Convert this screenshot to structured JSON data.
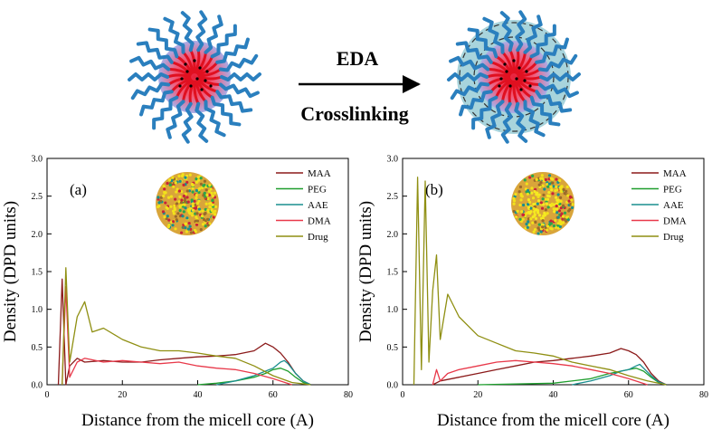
{
  "schematic": {
    "reaction_top": "EDA",
    "reaction_bottom": "Crosslinking"
  },
  "chart_data": [
    {
      "type": "line",
      "panel_label": "(a)",
      "xlabel": "Distance from the micell core (A)",
      "ylabel": "Density (DPD units)",
      "xlim": [
        0,
        80
      ],
      "ylim": [
        0,
        3.0
      ],
      "xticks": [
        "0",
        "20",
        "40",
        "60",
        "80"
      ],
      "yticks": [
        "0.0",
        "0.5",
        "1.0",
        "1.5",
        "2.0",
        "2.5",
        "3.0"
      ],
      "legend": [
        "MAA",
        "PEG",
        "AAE",
        "DMA",
        "Drug"
      ],
      "legend_position": "top-right",
      "series": [
        {
          "name": "MAA",
          "color": "#8b1a1a",
          "x": [
            3,
            4,
            5,
            6,
            8,
            10,
            15,
            20,
            25,
            30,
            35,
            40,
            45,
            50,
            55,
            58,
            60,
            62,
            64,
            66,
            68,
            70
          ],
          "y": [
            0,
            1.4,
            0.0,
            0.25,
            0.35,
            0.3,
            0.32,
            0.3,
            0.3,
            0.33,
            0.35,
            0.37,
            0.38,
            0.4,
            0.45,
            0.55,
            0.5,
            0.42,
            0.3,
            0.15,
            0.05,
            0
          ]
        },
        {
          "name": "PEG",
          "color": "#1f9e2e",
          "x": [
            40,
            45,
            50,
            55,
            58,
            60,
            62,
            64,
            66,
            68,
            70
          ],
          "y": [
            0,
            0.02,
            0.05,
            0.1,
            0.15,
            0.2,
            0.22,
            0.18,
            0.1,
            0.03,
            0
          ]
        },
        {
          "name": "AAE",
          "color": "#1a8f8f",
          "x": [
            45,
            50,
            55,
            58,
            60,
            62,
            63,
            64,
            66,
            68,
            70
          ],
          "y": [
            0,
            0.05,
            0.12,
            0.18,
            0.22,
            0.3,
            0.32,
            0.28,
            0.15,
            0.05,
            0
          ]
        },
        {
          "name": "DMA",
          "color": "#e8394a",
          "x": [
            4,
            5,
            6,
            8,
            10,
            15,
            20,
            25,
            30,
            35,
            40,
            45,
            50,
            55,
            60,
            65
          ],
          "y": [
            0,
            1.3,
            0.1,
            0.3,
            0.35,
            0.3,
            0.32,
            0.3,
            0.28,
            0.3,
            0.25,
            0.22,
            0.2,
            0.15,
            0.08,
            0
          ]
        },
        {
          "name": "Drug",
          "color": "#8f8f12",
          "x": [
            4,
            5,
            6,
            8,
            10,
            12,
            15,
            20,
            25,
            30,
            35,
            40,
            45,
            50,
            55,
            60,
            65,
            70
          ],
          "y": [
            0,
            1.55,
            0.3,
            0.9,
            1.1,
            0.7,
            0.75,
            0.6,
            0.5,
            0.45,
            0.45,
            0.42,
            0.38,
            0.35,
            0.25,
            0.12,
            0.03,
            0
          ]
        }
      ]
    },
    {
      "type": "line",
      "panel_label": "(b)",
      "xlabel": "Distance from the micell core (A)",
      "ylabel": "Density (DPD units)",
      "xlim": [
        0,
        80
      ],
      "ylim": [
        0,
        3.0
      ],
      "xticks": [
        "0",
        "20",
        "40",
        "60",
        "80"
      ],
      "yticks": [
        "0.0",
        "0.5",
        "1.0",
        "1.5",
        "2.0",
        "2.5",
        "3.0"
      ],
      "legend": [
        "MAA",
        "PEG",
        "AAE",
        "DMA",
        "Drug"
      ],
      "legend_position": "top-right",
      "series": [
        {
          "name": "MAA",
          "color": "#8b1a1a",
          "x": [
            8,
            10,
            15,
            20,
            25,
            30,
            35,
            40,
            45,
            50,
            55,
            58,
            60,
            62,
            64,
            66,
            68,
            70
          ],
          "y": [
            0,
            0.05,
            0.1,
            0.15,
            0.2,
            0.25,
            0.3,
            0.32,
            0.35,
            0.38,
            0.42,
            0.48,
            0.45,
            0.4,
            0.3,
            0.15,
            0.05,
            0
          ]
        },
        {
          "name": "PEG",
          "color": "#1f9e2e",
          "x": [
            20,
            30,
            40,
            50,
            55,
            60,
            62,
            64,
            66,
            68,
            70
          ],
          "y": [
            0,
            0.01,
            0.02,
            0.08,
            0.15,
            0.2,
            0.22,
            0.18,
            0.1,
            0.03,
            0
          ]
        },
        {
          "name": "AAE",
          "color": "#1a8f8f",
          "x": [
            45,
            50,
            55,
            58,
            60,
            62,
            63,
            64,
            66,
            68,
            70
          ],
          "y": [
            0,
            0.05,
            0.12,
            0.18,
            0.2,
            0.25,
            0.27,
            0.22,
            0.12,
            0.04,
            0
          ]
        },
        {
          "name": "DMA",
          "color": "#e8394a",
          "x": [
            8,
            9,
            10,
            12,
            15,
            20,
            25,
            30,
            35,
            40,
            45,
            50,
            55,
            60,
            65
          ],
          "y": [
            0,
            0.2,
            0.05,
            0.15,
            0.2,
            0.25,
            0.3,
            0.32,
            0.3,
            0.28,
            0.25,
            0.2,
            0.15,
            0.08,
            0
          ]
        },
        {
          "name": "Drug",
          "color": "#8f8f12",
          "x": [
            3,
            4,
            5,
            6,
            7,
            8,
            9,
            10,
            12,
            15,
            20,
            25,
            30,
            35,
            40,
            45,
            50,
            55,
            60,
            65,
            70
          ],
          "y": [
            0,
            2.75,
            0.2,
            2.7,
            0.3,
            1.25,
            1.72,
            0.6,
            1.2,
            0.9,
            0.65,
            0.55,
            0.45,
            0.42,
            0.38,
            0.3,
            0.25,
            0.2,
            0.12,
            0.05,
            0
          ]
        }
      ]
    }
  ]
}
